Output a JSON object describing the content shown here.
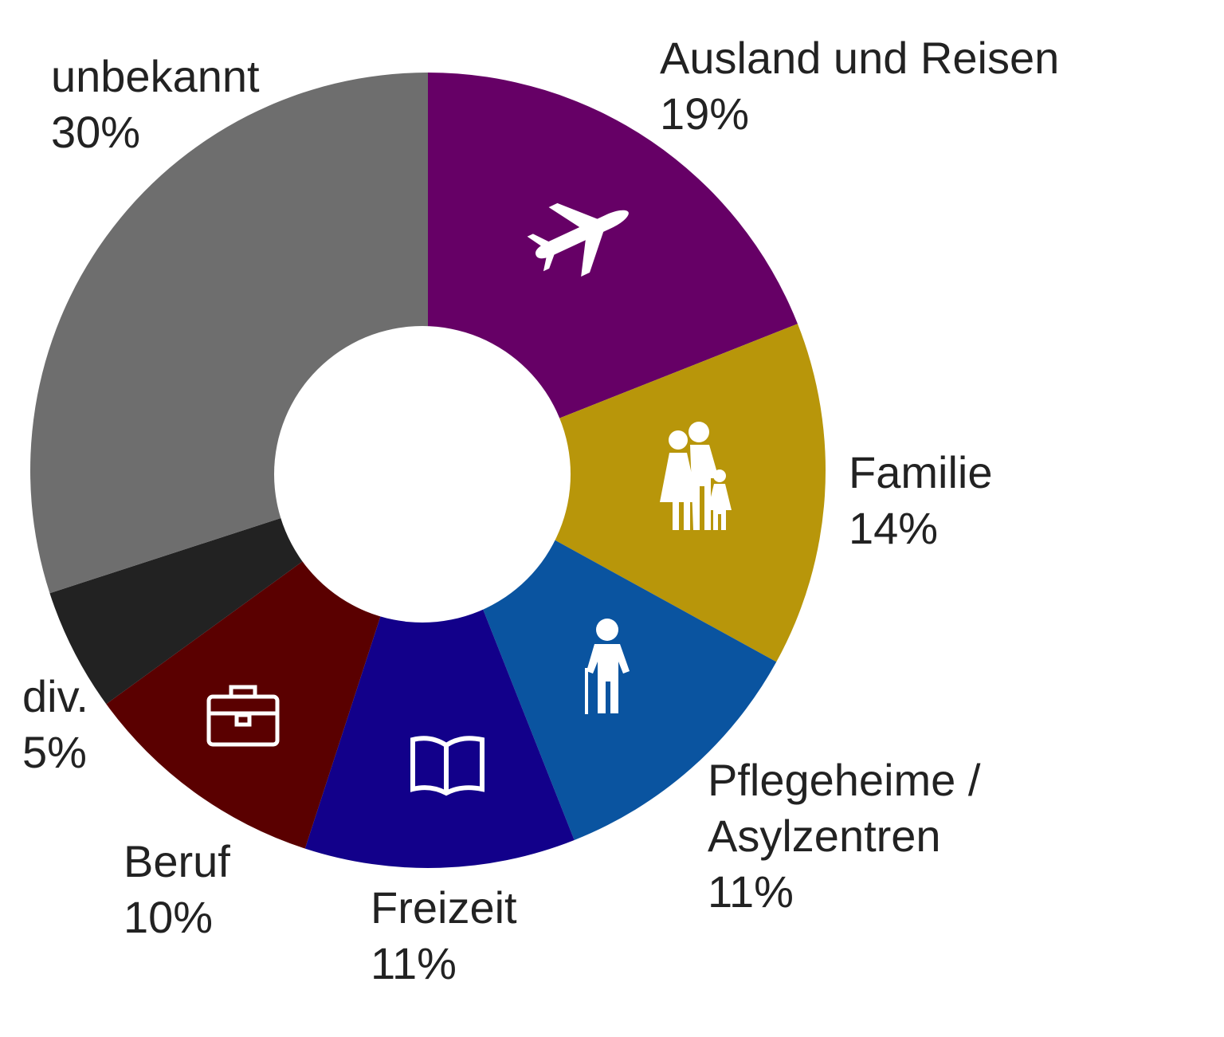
{
  "chart_data": {
    "type": "pie",
    "subtype": "donut",
    "title": "",
    "categories": [
      "Ausland und Reisen",
      "Familie",
      "Pflegeheime / Asylzentren",
      "Freizeit",
      "Beruf",
      "div.",
      "unbekannt"
    ],
    "label_lines": [
      [
        "Ausland und Reisen"
      ],
      [
        "Familie"
      ],
      [
        "Pflegeheime /",
        "Asylzentren"
      ],
      [
        "Freizeit"
      ],
      [
        "Beruf"
      ],
      [
        "div."
      ],
      [
        "unbekannt"
      ]
    ],
    "values": [
      19,
      14,
      11,
      11,
      10,
      5,
      30
    ],
    "value_labels": [
      "19%",
      "14%",
      "11%",
      "11%",
      "10%",
      "5%",
      "30%"
    ],
    "colors": [
      "#660066",
      "#b8960a",
      "#0a54a0",
      "#12008a",
      "#5a0000",
      "#222222",
      "#6e6e6e"
    ],
    "icons": [
      "airplane-icon",
      "family-icon",
      "elderly-person-icon",
      "book-icon",
      "briefcase-icon",
      "",
      ""
    ],
    "start": "top",
    "direction": "clockwise",
    "legend": "none"
  }
}
